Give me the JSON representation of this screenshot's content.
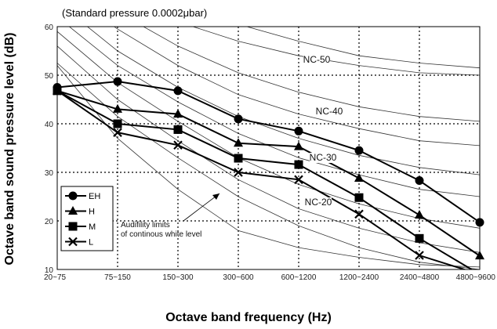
{
  "chart_data": {
    "type": "line",
    "annotation_top": "(Standard pressure  0.0002μbar)",
    "xlabel": "Octave band frequency (Hz)",
    "ylabel": "Octave band sound pressure level (dB)",
    "ylim": [
      10,
      60
    ],
    "yticks": [
      10,
      20,
      30,
      40,
      50,
      60
    ],
    "categories": [
      "20~75",
      "75~150",
      "150~300",
      "300~600",
      "600~1200",
      "1200~2400",
      "2400~4800",
      "4800~9600"
    ],
    "grid": true,
    "legend_position": "bottom-left",
    "series": [
      {
        "name": "EH",
        "marker": "circle",
        "values": [
          47.5,
          48.7,
          46.8,
          41,
          38.5,
          34.5,
          28.3,
          19.7
        ]
      },
      {
        "name": "H",
        "marker": "triangle",
        "values": [
          46.8,
          43,
          42,
          36,
          35.3,
          28.8,
          21.2,
          12.8
        ]
      },
      {
        "name": "M",
        "marker": "square",
        "values": [
          46.8,
          40,
          38.8,
          32.9,
          31.6,
          24.8,
          16.4,
          9
        ]
      },
      {
        "name": "L",
        "marker": "x",
        "values": [
          46.8,
          38.2,
          35.6,
          30,
          28.5,
          21.4,
          12.9,
          9
        ]
      }
    ],
    "reference_curves": [
      {
        "name": "NC-50",
        "values": [
          79,
          71,
          65,
          60.5,
          57,
          54,
          52.5,
          51.5
        ]
      },
      {
        "name": "NC-40",
        "values": [
          72,
          63,
          56,
          50.5,
          46.5,
          43.5,
          41.5,
          40.5
        ]
      },
      {
        "name": "NC-30",
        "values": [
          65,
          55,
          47.5,
          41.5,
          37,
          33.5,
          31,
          29.5
        ]
      },
      {
        "name": "NC-20",
        "values": [
          59,
          48.5,
          40.5,
          33,
          27.5,
          23.5,
          20.5,
          18.5
        ]
      },
      {
        "name": "",
        "values": [
          75,
          67,
          61,
          57,
          54,
          52,
          50.5,
          50
        ]
      },
      {
        "name": "",
        "values": [
          68.5,
          59.5,
          52,
          46,
          42,
          39,
          36.5,
          35.5
        ]
      },
      {
        "name": "",
        "values": [
          62,
          52,
          44.5,
          38,
          33,
          29.5,
          26.5,
          25
        ]
      },
      {
        "name": "",
        "values": [
          56,
          45,
          36.5,
          28.5,
          22.5,
          18.5,
          15.5,
          13.5
        ]
      },
      {
        "name": "",
        "values": [
          52.5,
          41.5,
          33,
          25,
          19,
          14.5,
          11.5,
          10
        ]
      }
    ],
    "hearing_threshold": {
      "label_line1": "Audifility limits",
      "label_line2": "of continous white level",
      "values": [
        52,
        37,
        26.5,
        18,
        14.5,
        12.5,
        11,
        10.5
      ]
    }
  }
}
